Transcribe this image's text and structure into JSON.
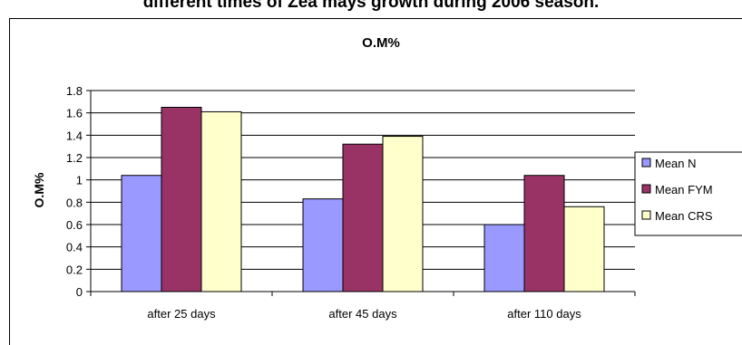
{
  "page_heading": "different times of Zea mays growth during 2006 season.",
  "chart_data": {
    "type": "bar",
    "title": "O.M%",
    "xlabel": "",
    "ylabel": "O.M%",
    "ylim": [
      0,
      1.8
    ],
    "ytick_step": 0.2,
    "yticks": [
      "0",
      "0.2",
      "0.4",
      "0.6",
      "0.8",
      "1",
      "1.2",
      "1.4",
      "1.6",
      "1.8"
    ],
    "categories": [
      "after 25 days",
      "after 45 days",
      "after 110 days"
    ],
    "grid": true,
    "legend": "right",
    "series": [
      {
        "name": "Mean N",
        "color": "#9999ff",
        "values": [
          1.04,
          0.83,
          0.6
        ]
      },
      {
        "name": "Mean FYM",
        "color": "#993366",
        "values": [
          1.65,
          1.32,
          1.04
        ]
      },
      {
        "name": "Mean CRS",
        "color": "#ffffcc",
        "values": [
          1.61,
          1.39,
          0.76
        ]
      }
    ]
  }
}
